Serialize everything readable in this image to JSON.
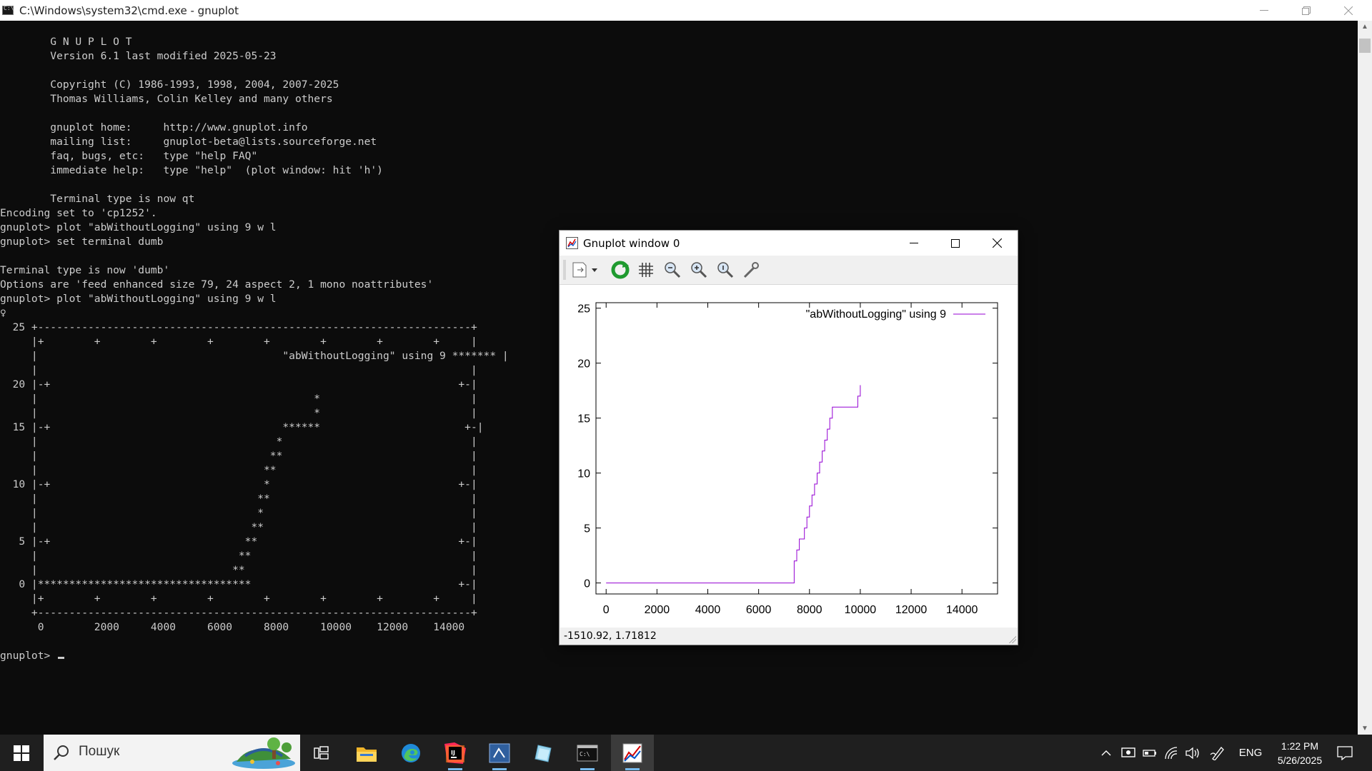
{
  "cmd": {
    "title": "C:\\Windows\\system32\\cmd.exe - gnuplot",
    "lines": [
      "",
      "        G N U P L O T",
      "        Version 6.1 last modified 2025-05-23",
      "",
      "        Copyright (C) 1986-1993, 1998, 2004, 2007-2025",
      "        Thomas Williams, Colin Kelley and many others",
      "",
      "        gnuplot home:     http://www.gnuplot.info",
      "        mailing list:     gnuplot-beta@lists.sourceforge.net",
      "        faq, bugs, etc:   type \"help FAQ\"",
      "        immediate help:   type \"help\"  (plot window: hit 'h')",
      "",
      "        Terminal type is now qt",
      "Encoding set to 'cp1252'.",
      "gnuplot> plot \"abWithoutLogging\" using 9 w l",
      "gnuplot> set terminal dumb",
      "",
      "Terminal type is now 'dumb'",
      "Options are 'feed enhanced size 79, 24 aspect 2, 1 mono noattributes'",
      "gnuplot> plot \"abWithoutLogging\" using 9 w l",
      "♀",
      "  25 +---------------------------------------------------------------------+",
      "     |+        +        +        +        +        +        +        +     |",
      "     |                                       \"abWithoutLogging\" using 9 ******* |",
      "     |                                                                     |",
      "  20 |-+                                                                 +-|",
      "     |                                            *                        |",
      "     |                                            *                        |",
      "  15 |-+                                     ******                       +-|",
      "     |                                      *                              |",
      "     |                                     **                              |",
      "     |                                    **                               |",
      "  10 |-+                                  *                              +-|",
      "     |                                   **                                |",
      "     |                                   *                                 |",
      "     |                                  **                                 |",
      "   5 |-+                               **                                +-|",
      "     |                                **                                   |",
      "     |                               **                                    |",
      "   0 |**********************************                                 +-|",
      "     |+        +        +        +        +        +        +        +     |",
      "     +---------------------------------------------------------------------+",
      "      0        2000     4000     6000     8000     10000    12000    14000",
      "",
      "gnuplot> "
    ]
  },
  "gnuplot_window": {
    "title": "Gnuplot window 0",
    "status": "-1510.92,  1.71812",
    "toolbar": [
      "export-icon",
      "replot-icon",
      "grid-icon",
      "zoom-back-icon",
      "zoom-forward-icon",
      "unzoom-icon",
      "settings-icon"
    ]
  },
  "chart_data": {
    "type": "line",
    "title": "",
    "xlabel": "",
    "ylabel": "",
    "xlim": [
      -400,
      15400
    ],
    "ylim": [
      -1,
      25.5
    ],
    "xticks": [
      0,
      2000,
      4000,
      6000,
      8000,
      10000,
      12000,
      14000
    ],
    "yticks": [
      0,
      5,
      10,
      15,
      20,
      25
    ],
    "legend": "top-right",
    "grid": false,
    "series": [
      {
        "name": "\"abWithoutLogging\" using 9",
        "color": "#9400d3",
        "x": [
          0,
          7400,
          7400,
          7500,
          7500,
          7600,
          7600,
          7800,
          7800,
          7900,
          7900,
          8000,
          8000,
          8100,
          8100,
          8200,
          8200,
          8300,
          8300,
          8400,
          8400,
          8500,
          8500,
          8600,
          8600,
          8700,
          8700,
          8800,
          8800,
          8900,
          8900,
          9900,
          9900,
          10000,
          10000
        ],
        "values": [
          0,
          0,
          2,
          2,
          3,
          3,
          4,
          4,
          5,
          5,
          6,
          6,
          7,
          7,
          8,
          8,
          9,
          9,
          10,
          10,
          11,
          11,
          12,
          12,
          13,
          13,
          14,
          14,
          15,
          15,
          16,
          16,
          17,
          17,
          18
        ]
      }
    ]
  },
  "taskbar": {
    "search_placeholder": "Пошук",
    "language": "ENG",
    "time": "1:22 PM",
    "date": "5/26/2025"
  },
  "colors": {
    "console_bg": "#0c0c0c",
    "console_text": "#cccccc",
    "plot_line": "#9400d3",
    "taskbar_bg": "#1f1f1f"
  }
}
